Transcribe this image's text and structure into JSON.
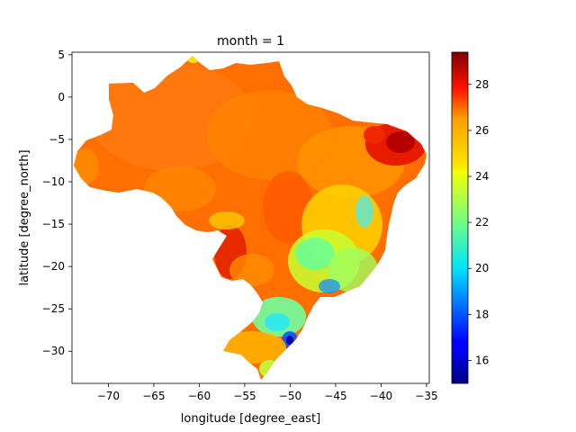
{
  "title": "month = 1",
  "xlabel": "longitude [degree_east]",
  "ylabel": "latitude [degree_north]",
  "chart_data": {
    "type": "heatmap",
    "title": "month = 1",
    "xlabel": "longitude [degree_east]",
    "ylabel": "latitude [degree_north]",
    "xlim": [
      -74,
      -34.7
    ],
    "ylim": [
      -33.8,
      5.3
    ],
    "x_ticks": [
      -70,
      -65,
      -60,
      -55,
      -50,
      -45,
      -40,
      -35
    ],
    "x_tick_labels": [
      "−70",
      "−65",
      "−60",
      "−55",
      "−50",
      "−45",
      "−40",
      "−35"
    ],
    "y_ticks": [
      5,
      0,
      -5,
      -10,
      -15,
      -20,
      -25,
      -30
    ],
    "y_tick_labels": [
      "5",
      "0",
      "−5",
      "−10",
      "−15",
      "−20",
      "−25",
      "−30"
    ],
    "colorbar": {
      "colormap": "jet",
      "vmin": 15,
      "vmax": 29.4,
      "ticks": [
        16,
        18,
        20,
        22,
        24,
        26,
        28
      ],
      "tick_labels": [
        "16",
        "18",
        "20",
        "22",
        "24",
        "26",
        "28"
      ]
    },
    "region_values": [
      {
        "lon": -60,
        "lat": -5,
        "value": 26.5
      },
      {
        "lon": -65,
        "lat": -8,
        "value": 26.0
      },
      {
        "lon": -38.5,
        "lat": -5.5,
        "value": 28.5
      },
      {
        "lon": -56.5,
        "lat": -19.5,
        "value": 28.0
      },
      {
        "lon": -52.5,
        "lat": 3,
        "value": 26.0
      },
      {
        "lon": -45,
        "lat": -19,
        "value": 22.0
      },
      {
        "lon": -48,
        "lat": -27,
        "value": 20.0
      },
      {
        "lon": -50.5,
        "lat": -28.5,
        "value": 17.5
      },
      {
        "lon": -53,
        "lat": -31,
        "value": 24.5
      },
      {
        "lon": -47,
        "lat": -12,
        "value": 25.5
      }
    ]
  }
}
